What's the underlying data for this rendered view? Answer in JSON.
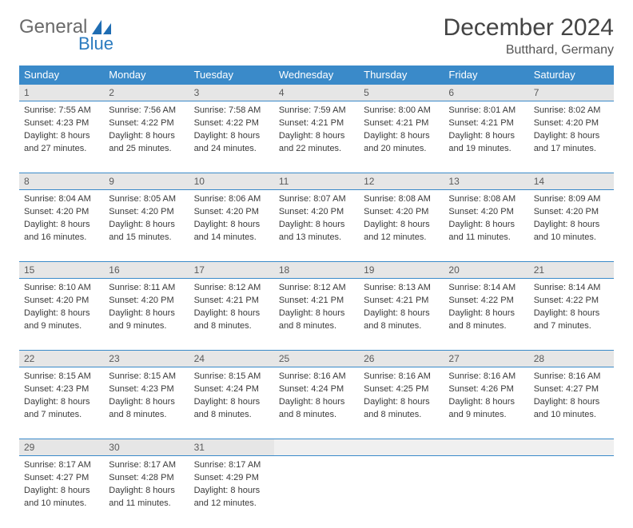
{
  "logo": {
    "text1": "General",
    "text2": "Blue"
  },
  "title": "December 2024",
  "location": "Butthard, Germany",
  "colors": {
    "header_bg": "#3a8ac9",
    "header_text": "#ffffff",
    "daynum_bg": "#e6e6e6",
    "daynum_text": "#5a5a5a",
    "border": "#3a8ac9",
    "logo_gray": "#6a6a6a",
    "logo_blue": "#2b7bbf"
  },
  "weekdays": [
    "Sunday",
    "Monday",
    "Tuesday",
    "Wednesday",
    "Thursday",
    "Friday",
    "Saturday"
  ],
  "days": [
    {
      "n": "1",
      "sunrise": "Sunrise: 7:55 AM",
      "sunset": "Sunset: 4:23 PM",
      "day1": "Daylight: 8 hours",
      "day2": "and 27 minutes."
    },
    {
      "n": "2",
      "sunrise": "Sunrise: 7:56 AM",
      "sunset": "Sunset: 4:22 PM",
      "day1": "Daylight: 8 hours",
      "day2": "and 25 minutes."
    },
    {
      "n": "3",
      "sunrise": "Sunrise: 7:58 AM",
      "sunset": "Sunset: 4:22 PM",
      "day1": "Daylight: 8 hours",
      "day2": "and 24 minutes."
    },
    {
      "n": "4",
      "sunrise": "Sunrise: 7:59 AM",
      "sunset": "Sunset: 4:21 PM",
      "day1": "Daylight: 8 hours",
      "day2": "and 22 minutes."
    },
    {
      "n": "5",
      "sunrise": "Sunrise: 8:00 AM",
      "sunset": "Sunset: 4:21 PM",
      "day1": "Daylight: 8 hours",
      "day2": "and 20 minutes."
    },
    {
      "n": "6",
      "sunrise": "Sunrise: 8:01 AM",
      "sunset": "Sunset: 4:21 PM",
      "day1": "Daylight: 8 hours",
      "day2": "and 19 minutes."
    },
    {
      "n": "7",
      "sunrise": "Sunrise: 8:02 AM",
      "sunset": "Sunset: 4:20 PM",
      "day1": "Daylight: 8 hours",
      "day2": "and 17 minutes."
    },
    {
      "n": "8",
      "sunrise": "Sunrise: 8:04 AM",
      "sunset": "Sunset: 4:20 PM",
      "day1": "Daylight: 8 hours",
      "day2": "and 16 minutes."
    },
    {
      "n": "9",
      "sunrise": "Sunrise: 8:05 AM",
      "sunset": "Sunset: 4:20 PM",
      "day1": "Daylight: 8 hours",
      "day2": "and 15 minutes."
    },
    {
      "n": "10",
      "sunrise": "Sunrise: 8:06 AM",
      "sunset": "Sunset: 4:20 PM",
      "day1": "Daylight: 8 hours",
      "day2": "and 14 minutes."
    },
    {
      "n": "11",
      "sunrise": "Sunrise: 8:07 AM",
      "sunset": "Sunset: 4:20 PM",
      "day1": "Daylight: 8 hours",
      "day2": "and 13 minutes."
    },
    {
      "n": "12",
      "sunrise": "Sunrise: 8:08 AM",
      "sunset": "Sunset: 4:20 PM",
      "day1": "Daylight: 8 hours",
      "day2": "and 12 minutes."
    },
    {
      "n": "13",
      "sunrise": "Sunrise: 8:08 AM",
      "sunset": "Sunset: 4:20 PM",
      "day1": "Daylight: 8 hours",
      "day2": "and 11 minutes."
    },
    {
      "n": "14",
      "sunrise": "Sunrise: 8:09 AM",
      "sunset": "Sunset: 4:20 PM",
      "day1": "Daylight: 8 hours",
      "day2": "and 10 minutes."
    },
    {
      "n": "15",
      "sunrise": "Sunrise: 8:10 AM",
      "sunset": "Sunset: 4:20 PM",
      "day1": "Daylight: 8 hours",
      "day2": "and 9 minutes."
    },
    {
      "n": "16",
      "sunrise": "Sunrise: 8:11 AM",
      "sunset": "Sunset: 4:20 PM",
      "day1": "Daylight: 8 hours",
      "day2": "and 9 minutes."
    },
    {
      "n": "17",
      "sunrise": "Sunrise: 8:12 AM",
      "sunset": "Sunset: 4:21 PM",
      "day1": "Daylight: 8 hours",
      "day2": "and 8 minutes."
    },
    {
      "n": "18",
      "sunrise": "Sunrise: 8:12 AM",
      "sunset": "Sunset: 4:21 PM",
      "day1": "Daylight: 8 hours",
      "day2": "and 8 minutes."
    },
    {
      "n": "19",
      "sunrise": "Sunrise: 8:13 AM",
      "sunset": "Sunset: 4:21 PM",
      "day1": "Daylight: 8 hours",
      "day2": "and 8 minutes."
    },
    {
      "n": "20",
      "sunrise": "Sunrise: 8:14 AM",
      "sunset": "Sunset: 4:22 PM",
      "day1": "Daylight: 8 hours",
      "day2": "and 8 minutes."
    },
    {
      "n": "21",
      "sunrise": "Sunrise: 8:14 AM",
      "sunset": "Sunset: 4:22 PM",
      "day1": "Daylight: 8 hours",
      "day2": "and 7 minutes."
    },
    {
      "n": "22",
      "sunrise": "Sunrise: 8:15 AM",
      "sunset": "Sunset: 4:23 PM",
      "day1": "Daylight: 8 hours",
      "day2": "and 7 minutes."
    },
    {
      "n": "23",
      "sunrise": "Sunrise: 8:15 AM",
      "sunset": "Sunset: 4:23 PM",
      "day1": "Daylight: 8 hours",
      "day2": "and 8 minutes."
    },
    {
      "n": "24",
      "sunrise": "Sunrise: 8:15 AM",
      "sunset": "Sunset: 4:24 PM",
      "day1": "Daylight: 8 hours",
      "day2": "and 8 minutes."
    },
    {
      "n": "25",
      "sunrise": "Sunrise: 8:16 AM",
      "sunset": "Sunset: 4:24 PM",
      "day1": "Daylight: 8 hours",
      "day2": "and 8 minutes."
    },
    {
      "n": "26",
      "sunrise": "Sunrise: 8:16 AM",
      "sunset": "Sunset: 4:25 PM",
      "day1": "Daylight: 8 hours",
      "day2": "and 8 minutes."
    },
    {
      "n": "27",
      "sunrise": "Sunrise: 8:16 AM",
      "sunset": "Sunset: 4:26 PM",
      "day1": "Daylight: 8 hours",
      "day2": "and 9 minutes."
    },
    {
      "n": "28",
      "sunrise": "Sunrise: 8:16 AM",
      "sunset": "Sunset: 4:27 PM",
      "day1": "Daylight: 8 hours",
      "day2": "and 10 minutes."
    },
    {
      "n": "29",
      "sunrise": "Sunrise: 8:17 AM",
      "sunset": "Sunset: 4:27 PM",
      "day1": "Daylight: 8 hours",
      "day2": "and 10 minutes."
    },
    {
      "n": "30",
      "sunrise": "Sunrise: 8:17 AM",
      "sunset": "Sunset: 4:28 PM",
      "day1": "Daylight: 8 hours",
      "day2": "and 11 minutes."
    },
    {
      "n": "31",
      "sunrise": "Sunrise: 8:17 AM",
      "sunset": "Sunset: 4:29 PM",
      "day1": "Daylight: 8 hours",
      "day2": "and 12 minutes."
    }
  ]
}
